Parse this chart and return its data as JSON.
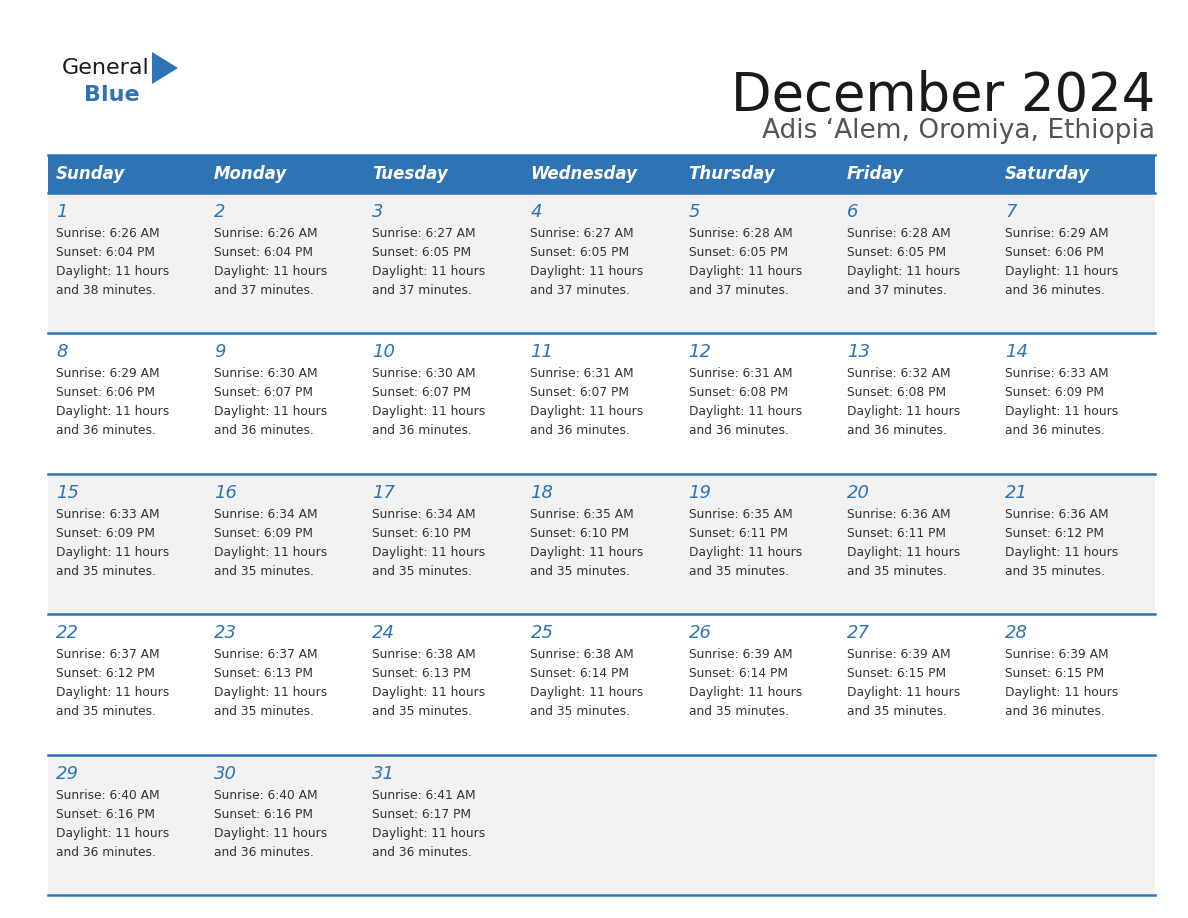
{
  "title": "December 2024",
  "subtitle": "Adis ‘Alem, Oromiya, Ethiopia",
  "days_of_week": [
    "Sunday",
    "Monday",
    "Tuesday",
    "Wednesday",
    "Thursday",
    "Friday",
    "Saturday"
  ],
  "header_bg": "#2E74B5",
  "header_text": "#FFFFFF",
  "day_num_color": "#2E74B5",
  "cell_bg_odd": "#F2F2F2",
  "cell_bg_even": "#FFFFFF",
  "separator_color": "#2E74B5",
  "title_color": "#1a1a1a",
  "subtitle_color": "#555555",
  "calendar": [
    [
      {
        "day": 1,
        "sunrise": "6:26 AM",
        "sunset": "6:04 PM",
        "daylight": "11 hours and 38 minutes."
      },
      {
        "day": 2,
        "sunrise": "6:26 AM",
        "sunset": "6:04 PM",
        "daylight": "11 hours and 37 minutes."
      },
      {
        "day": 3,
        "sunrise": "6:27 AM",
        "sunset": "6:05 PM",
        "daylight": "11 hours and 37 minutes."
      },
      {
        "day": 4,
        "sunrise": "6:27 AM",
        "sunset": "6:05 PM",
        "daylight": "11 hours and 37 minutes."
      },
      {
        "day": 5,
        "sunrise": "6:28 AM",
        "sunset": "6:05 PM",
        "daylight": "11 hours and 37 minutes."
      },
      {
        "day": 6,
        "sunrise": "6:28 AM",
        "sunset": "6:05 PM",
        "daylight": "11 hours and 37 minutes."
      },
      {
        "day": 7,
        "sunrise": "6:29 AM",
        "sunset": "6:06 PM",
        "daylight": "11 hours and 36 minutes."
      }
    ],
    [
      {
        "day": 8,
        "sunrise": "6:29 AM",
        "sunset": "6:06 PM",
        "daylight": "11 hours and 36 minutes."
      },
      {
        "day": 9,
        "sunrise": "6:30 AM",
        "sunset": "6:07 PM",
        "daylight": "11 hours and 36 minutes."
      },
      {
        "day": 10,
        "sunrise": "6:30 AM",
        "sunset": "6:07 PM",
        "daylight": "11 hours and 36 minutes."
      },
      {
        "day": 11,
        "sunrise": "6:31 AM",
        "sunset": "6:07 PM",
        "daylight": "11 hours and 36 minutes."
      },
      {
        "day": 12,
        "sunrise": "6:31 AM",
        "sunset": "6:08 PM",
        "daylight": "11 hours and 36 minutes."
      },
      {
        "day": 13,
        "sunrise": "6:32 AM",
        "sunset": "6:08 PM",
        "daylight": "11 hours and 36 minutes."
      },
      {
        "day": 14,
        "sunrise": "6:33 AM",
        "sunset": "6:09 PM",
        "daylight": "11 hours and 36 minutes."
      }
    ],
    [
      {
        "day": 15,
        "sunrise": "6:33 AM",
        "sunset": "6:09 PM",
        "daylight": "11 hours and 35 minutes."
      },
      {
        "day": 16,
        "sunrise": "6:34 AM",
        "sunset": "6:09 PM",
        "daylight": "11 hours and 35 minutes."
      },
      {
        "day": 17,
        "sunrise": "6:34 AM",
        "sunset": "6:10 PM",
        "daylight": "11 hours and 35 minutes."
      },
      {
        "day": 18,
        "sunrise": "6:35 AM",
        "sunset": "6:10 PM",
        "daylight": "11 hours and 35 minutes."
      },
      {
        "day": 19,
        "sunrise": "6:35 AM",
        "sunset": "6:11 PM",
        "daylight": "11 hours and 35 minutes."
      },
      {
        "day": 20,
        "sunrise": "6:36 AM",
        "sunset": "6:11 PM",
        "daylight": "11 hours and 35 minutes."
      },
      {
        "day": 21,
        "sunrise": "6:36 AM",
        "sunset": "6:12 PM",
        "daylight": "11 hours and 35 minutes."
      }
    ],
    [
      {
        "day": 22,
        "sunrise": "6:37 AM",
        "sunset": "6:12 PM",
        "daylight": "11 hours and 35 minutes."
      },
      {
        "day": 23,
        "sunrise": "6:37 AM",
        "sunset": "6:13 PM",
        "daylight": "11 hours and 35 minutes."
      },
      {
        "day": 24,
        "sunrise": "6:38 AM",
        "sunset": "6:13 PM",
        "daylight": "11 hours and 35 minutes."
      },
      {
        "day": 25,
        "sunrise": "6:38 AM",
        "sunset": "6:14 PM",
        "daylight": "11 hours and 35 minutes."
      },
      {
        "day": 26,
        "sunrise": "6:39 AM",
        "sunset": "6:14 PM",
        "daylight": "11 hours and 35 minutes."
      },
      {
        "day": 27,
        "sunrise": "6:39 AM",
        "sunset": "6:15 PM",
        "daylight": "11 hours and 35 minutes."
      },
      {
        "day": 28,
        "sunrise": "6:39 AM",
        "sunset": "6:15 PM",
        "daylight": "11 hours and 36 minutes."
      }
    ],
    [
      {
        "day": 29,
        "sunrise": "6:40 AM",
        "sunset": "6:16 PM",
        "daylight": "11 hours and 36 minutes."
      },
      {
        "day": 30,
        "sunrise": "6:40 AM",
        "sunset": "6:16 PM",
        "daylight": "11 hours and 36 minutes."
      },
      {
        "day": 31,
        "sunrise": "6:41 AM",
        "sunset": "6:17 PM",
        "daylight": "11 hours and 36 minutes."
      },
      null,
      null,
      null,
      null
    ]
  ],
  "logo_general_color": "#1a1a1a",
  "logo_blue_color": "#2E74B5",
  "logo_triangle_color": "#2E74B5"
}
